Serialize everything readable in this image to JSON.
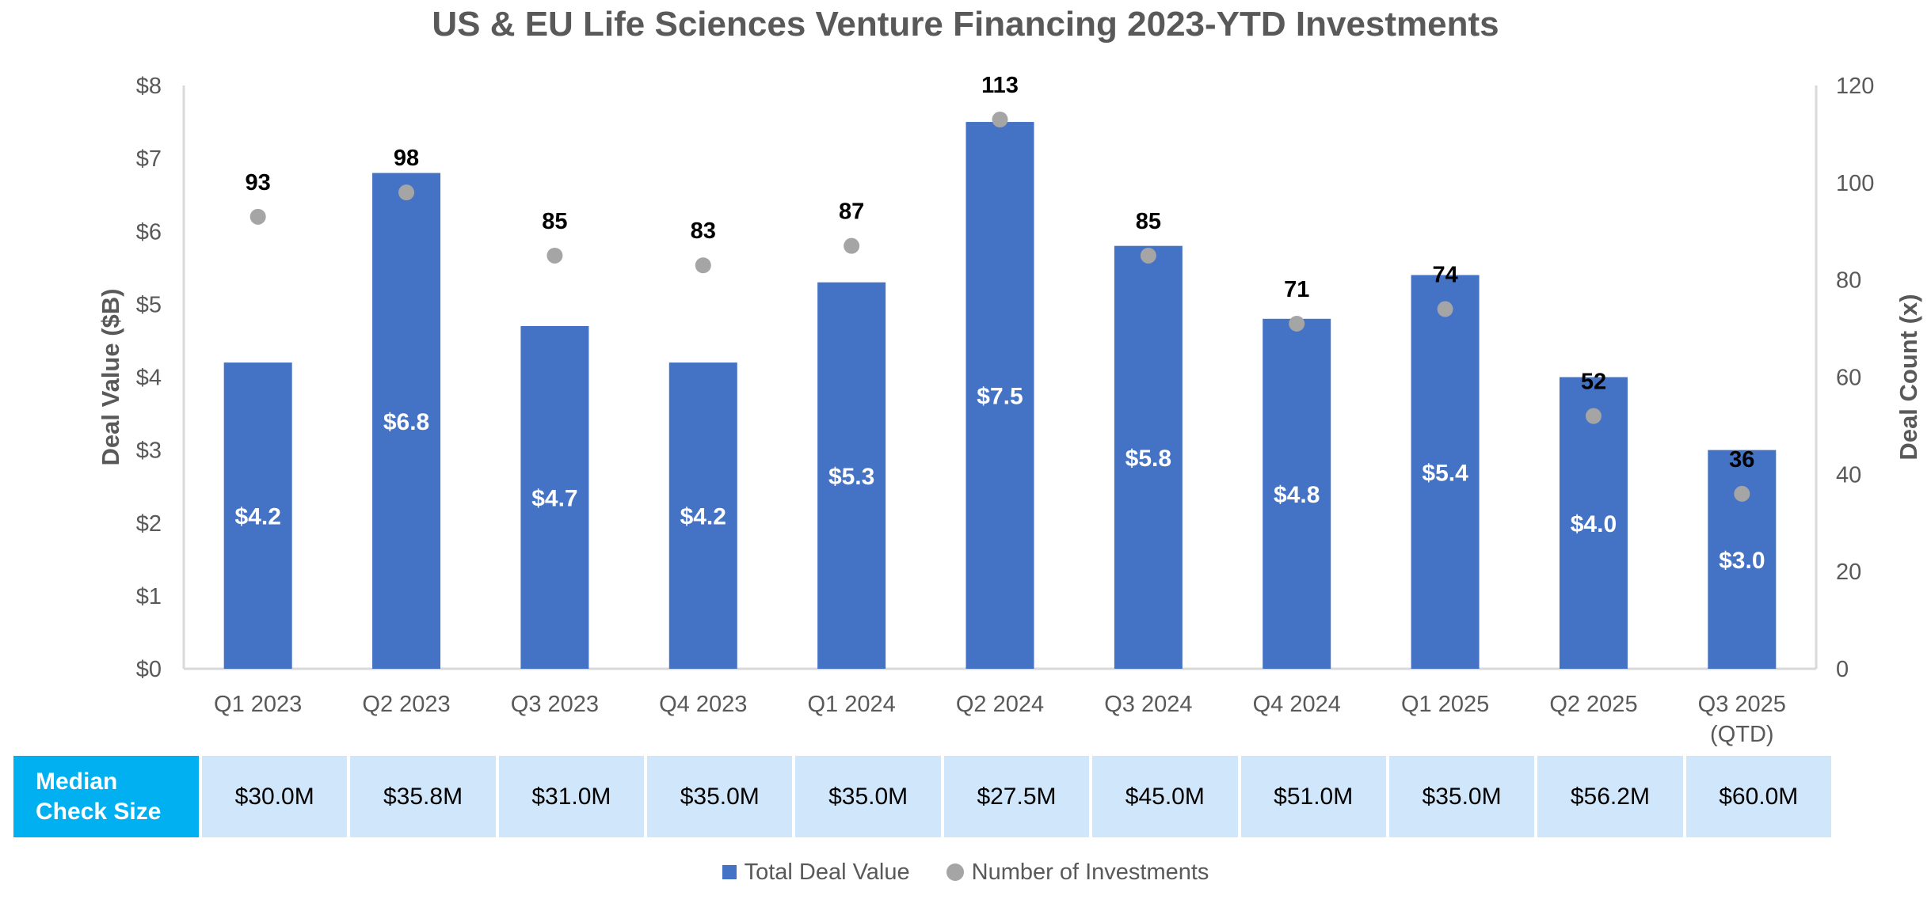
{
  "chart_data": {
    "type": "bar",
    "title": "US & EU Life Sciences Venture Financing 2023-YTD Investments",
    "categories": [
      "Q1 2023",
      "Q2 2023",
      "Q3 2023",
      "Q4 2023",
      "Q1 2024",
      "Q2 2024",
      "Q3 2024",
      "Q4 2024",
      "Q1 2025",
      "Q2 2025",
      "Q3 2025 (QTD)"
    ],
    "series": [
      {
        "name": "Total Deal Value",
        "type": "bar",
        "axis": "left",
        "color": "#4472c4",
        "values": [
          4.2,
          6.8,
          4.7,
          4.2,
          5.3,
          7.5,
          5.8,
          4.8,
          5.4,
          4.0,
          3.0
        ],
        "value_labels": [
          "$4.2",
          "$6.8",
          "$4.7",
          "$4.2",
          "$5.3",
          "$7.5",
          "$5.8",
          "$4.8",
          "$5.4",
          "$4.0",
          "$3.0"
        ]
      },
      {
        "name": "Number of Investments",
        "type": "scatter",
        "axis": "right",
        "color": "#a5a5a5",
        "values": [
          93,
          98,
          85,
          83,
          87,
          113,
          85,
          71,
          74,
          52,
          36
        ]
      }
    ],
    "ylabel": "Deal Value ($B)",
    "ylim": [
      0,
      8
    ],
    "yticks": [
      "$0",
      "$1",
      "$2",
      "$3",
      "$4",
      "$5",
      "$6",
      "$7",
      "$8"
    ],
    "y2label": "Deal Count (x)",
    "y2lim": [
      0,
      120
    ],
    "y2ticks": [
      "0",
      "20",
      "40",
      "60",
      "80",
      "100",
      "120"
    ],
    "grid": false,
    "legend_position": "bottom"
  },
  "median_table": {
    "label_line1": "Median",
    "label_line2": "Check Size",
    "values": [
      "$30.0M",
      "$35.8M",
      "$31.0M",
      "$35.0M",
      "$35.0M",
      "$27.5M",
      "$45.0M",
      "$51.0M",
      "$35.0M",
      "$56.2M",
      "$60.0M"
    ]
  },
  "legend": {
    "bar_label": "Total Deal Value",
    "dot_label": "Number of Investments"
  }
}
